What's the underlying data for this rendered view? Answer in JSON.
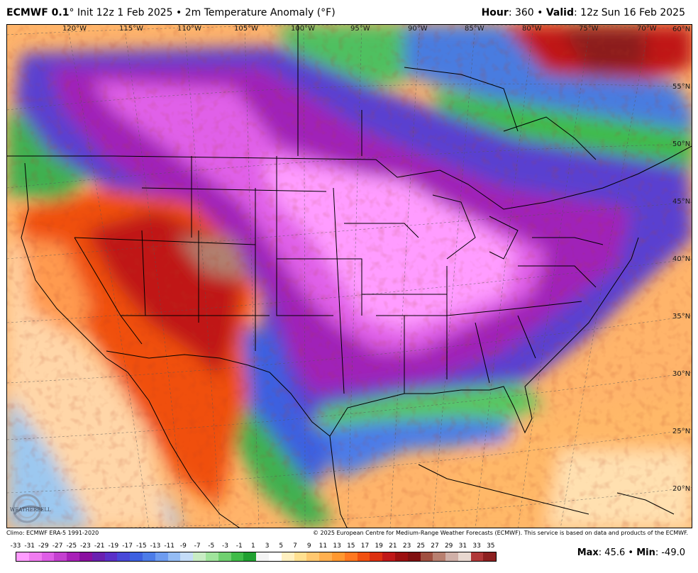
{
  "header": {
    "model": "ECMWF 0.1",
    "init": "° Init 12z 1 Feb 2025 • 2m Temperature Anomaly (°F)",
    "hour_label": "Hour",
    "hour_value": ": 360 • ",
    "valid_label": "Valid",
    "valid_value": ": 12z Sun 16 Feb 2025"
  },
  "map": {
    "longitude_labels": [
      "120°W",
      "115°W",
      "110°W",
      "105°W",
      "100°W",
      "95°W",
      "90°W",
      "85°W",
      "80°W",
      "75°W",
      "70°W"
    ],
    "latitude_labels": [
      "60°N",
      "55°N",
      "50°N",
      "45°N",
      "40°N",
      "35°N",
      "30°N",
      "25°N",
      "20°N"
    ]
  },
  "branding": {
    "logo_text": "WEATHERBELL"
  },
  "footer": {
    "climo": "Climo: ECMWF ERA-5 1991-2020",
    "copyright": "© 2025 European Centre for Medium-Range Weather Forecasts (ECMWF). This service is based on data and products of the ECMWF."
  },
  "legend": {
    "tick_labels": [
      "-33",
      "-31",
      "-29",
      "-27",
      "-25",
      "-23",
      "-21",
      "-19",
      "-17",
      "-15",
      "-13",
      "-11",
      "-9",
      "-7",
      "-5",
      "-3",
      "-1",
      "1",
      "3",
      "5",
      "7",
      "9",
      "11",
      "13",
      "15",
      "17",
      "19",
      "21",
      "23",
      "25",
      "27",
      "29",
      "31",
      "33",
      "35"
    ],
    "colors": [
      "#ff9cff",
      "#f07cf0",
      "#de5ee6",
      "#c440d0",
      "#a820b8",
      "#8a10a0",
      "#6a20b0",
      "#5a30c8",
      "#4848d8",
      "#3c60e0",
      "#4c7ce8",
      "#6e9cf0",
      "#94bcf4",
      "#c4dcf8",
      "#c8ecc4",
      "#a0e49c",
      "#70d070",
      "#40bc48",
      "#20a030",
      "#f4f4f4",
      "#ffffff",
      "#fff0c0",
      "#ffe090",
      "#ffc870",
      "#ffb050",
      "#ff9830",
      "#ff7820",
      "#f05010",
      "#dc3010",
      "#c01818",
      "#9c1010",
      "#801010",
      "#a05040",
      "#b88070",
      "#d0b0a8",
      "#e8d8d0",
      "#b03838",
      "#8c2020"
    ]
  },
  "stats": {
    "max_label": "Max",
    "max_value": ": 45.6 • ",
    "min_label": "Min",
    "min_value": ": -49.0"
  }
}
